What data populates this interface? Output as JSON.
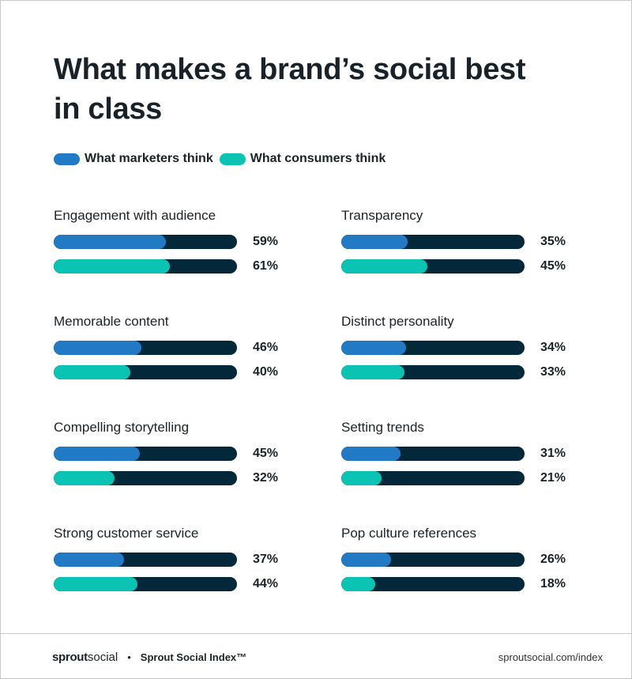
{
  "title": "What makes a brand’s social best in class",
  "chart_data": {
    "type": "bar",
    "orientation": "horizontal",
    "title": "What makes a brand’s social best in class",
    "xlim": [
      0,
      100
    ],
    "unit": "%",
    "legend_position": "top-left",
    "series": [
      {
        "name": "What marketers think",
        "color": "#2279c4"
      },
      {
        "name": "What consumers think",
        "color": "#0ac3b3"
      }
    ],
    "track_color": "#03283a",
    "categories": [
      {
        "label": "Engagement with audience",
        "values": [
          59,
          61
        ],
        "labels": [
          "59%",
          "61%"
        ]
      },
      {
        "label": "Transparency",
        "values": [
          35,
          45
        ],
        "labels": [
          "35%",
          "45%"
        ]
      },
      {
        "label": "Memorable content",
        "values": [
          46,
          40
        ],
        "labels": [
          "46%",
          "40%"
        ]
      },
      {
        "label": "Distinct personality",
        "values": [
          34,
          33
        ],
        "labels": [
          "34%",
          "33%"
        ]
      },
      {
        "label": "Compelling storytelling",
        "values": [
          45,
          32
        ],
        "labels": [
          "45%",
          "32%"
        ]
      },
      {
        "label": "Setting trends",
        "values": [
          31,
          21
        ],
        "labels": [
          "31%",
          "21%"
        ]
      },
      {
        "label": "Strong customer service",
        "values": [
          37,
          44
        ],
        "labels": [
          "37%",
          "44%"
        ]
      },
      {
        "label": "Pop culture references",
        "values": [
          26,
          18
        ],
        "labels": [
          "26%",
          "18%"
        ]
      }
    ]
  },
  "footer": {
    "logo_bold": "sprout",
    "logo_light": "social",
    "separator": "•",
    "index_name": "Sprout Social Index™",
    "url": "sproutsocial.com/index"
  }
}
